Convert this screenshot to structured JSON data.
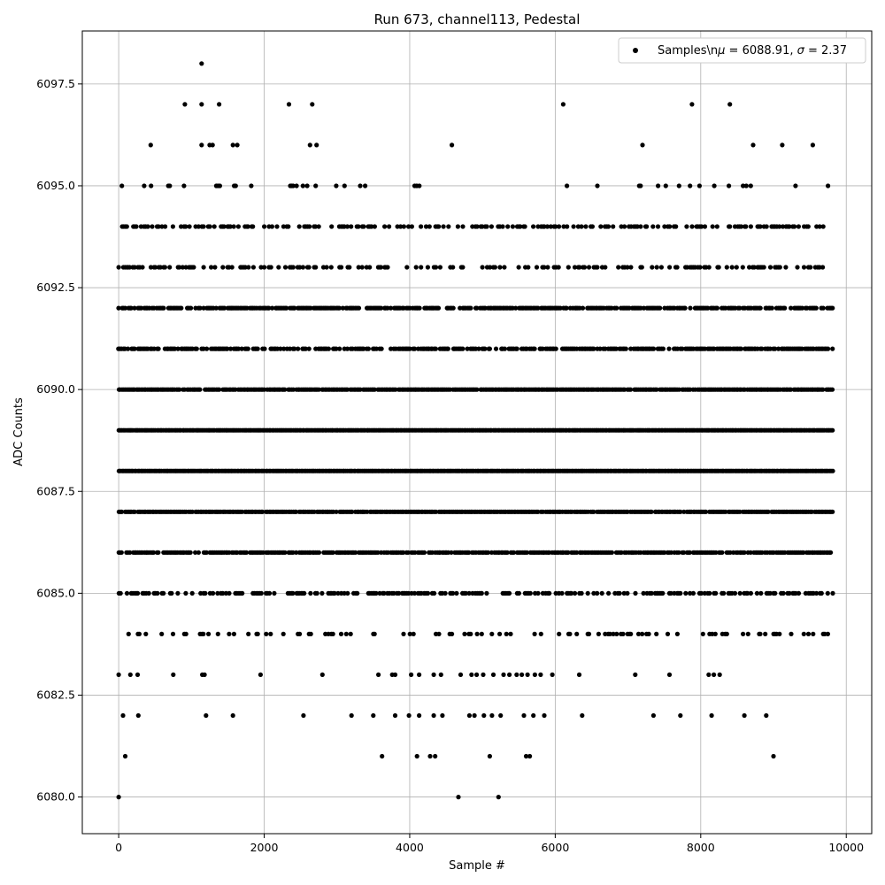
{
  "chart_data": {
    "type": "scatter",
    "title": "Run 673, channel113, Pedestal",
    "xlabel": "Sample #",
    "ylabel": "ADC Counts",
    "xlim": [
      -500,
      10350
    ],
    "ylim": [
      6079.1,
      6098.8
    ],
    "x_ticks": [
      0,
      2000,
      4000,
      6000,
      8000,
      10000
    ],
    "x_tick_labels": [
      "0",
      "2000",
      "4000",
      "6000",
      "8000",
      "10000"
    ],
    "y_ticks": [
      6080.0,
      6082.5,
      6085.0,
      6087.5,
      6090.0,
      6092.5,
      6095.0,
      6097.5
    ],
    "y_tick_labels": [
      "6080.0",
      "6082.5",
      "6085.0",
      "6087.5",
      "6090.0",
      "6092.5",
      "6095.0",
      "6097.5"
    ],
    "grid": true,
    "legend_position": "top-right",
    "series": [
      {
        "name": "Samples\\n$\\mu$ = 6088.91, $\\sigma$ = 2.37",
        "legend_label_prefix": "Samples\\n",
        "legend_mu_symbol": "μ",
        "legend_mu_value": " = 6088.91, ",
        "legend_sigma_symbol": "σ",
        "legend_sigma_value": " = 2.37",
        "color": "#000000",
        "marker": "circle",
        "n_samples": 9840,
        "x_range": [
          0,
          9830
        ],
        "levels": [
          6080,
          6081,
          6082,
          6083,
          6084,
          6085,
          6086,
          6087,
          6088,
          6089,
          6090,
          6091,
          6092,
          6093,
          6094,
          6095,
          6096,
          6097,
          6098
        ],
        "sparse_points": {
          "6080": [
            0,
            4670,
            5220
          ],
          "6081": [
            90,
            3620,
            4100,
            4280,
            4350,
            5100,
            5600,
            5650,
            9000
          ],
          "6082": [
            60,
            270,
            1200,
            1570,
            2540,
            3200,
            3500,
            3800,
            3990,
            4130,
            4330,
            4450,
            4820,
            4890,
            5020,
            5130,
            5250,
            5570,
            5700,
            5850,
            6370,
            7350,
            7720,
            8150,
            8600,
            8900
          ],
          "6083": [
            0,
            160,
            260,
            750,
            1150,
            1180,
            1950,
            2800,
            3570,
            3760,
            3800,
            4020,
            4130,
            4330,
            4430,
            4700,
            4850,
            4920,
            5010,
            5150,
            5290,
            5370,
            5470,
            5540,
            5620,
            5720,
            5800,
            5960,
            6330,
            7100,
            7570,
            8110,
            8180,
            8260
          ],
          "6096": [
            440,
            1140,
            1250,
            1290,
            1570,
            1630,
            2630,
            2720,
            4580,
            7200,
            8720,
            9120,
            9540
          ],
          "6097": [
            910,
            1140,
            1380,
            2340,
            2660,
            6110,
            7880,
            8400
          ],
          "6098": [
            1140
          ]
        },
        "density": {
          "6084": 0.25,
          "6085": 0.5,
          "6086": 0.85,
          "6087": 0.95,
          "6088": 1.0,
          "6089": 1.0,
          "6090": 0.95,
          "6091": 0.75,
          "6092": 0.75,
          "6093": 0.4,
          "6094": 0.45,
          "6095": 0.07
        }
      }
    ]
  }
}
